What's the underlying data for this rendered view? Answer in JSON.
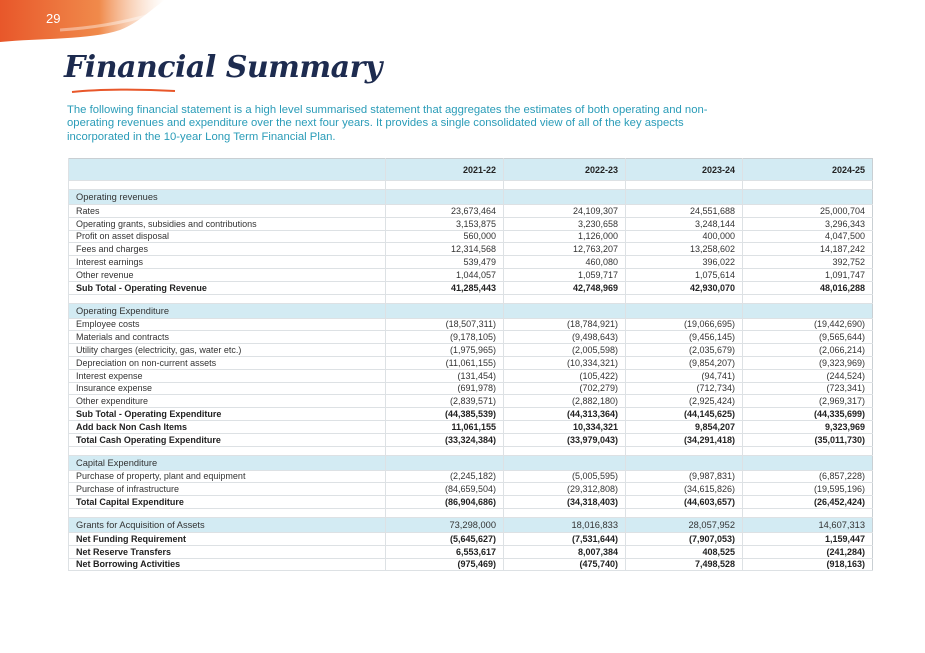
{
  "page_number": "29",
  "title": "Financial Summary",
  "intro": "The following financial statement is a high level summarised statement that aggregates the estimates of both operating and non-operating revenues and expenditure over the next four years. It provides a single consolidated view of all of the key aspects incorporated in the 10-year Long Term Financial Plan.",
  "table": {
    "columns": [
      "2021-22",
      "2022-23",
      "2023-24",
      "2024-25"
    ],
    "sections": [
      {
        "rows": [
          {
            "label": "Operating revenues",
            "shaded": true
          },
          {
            "label": "Rates",
            "values": [
              "23,673,464",
              "24,109,307",
              "24,551,688",
              "25,000,704"
            ]
          },
          {
            "label": "Operating grants, subsidies and contributions",
            "values": [
              "3,153,875",
              "3,230,658",
              "3,248,144",
              "3,296,343"
            ]
          },
          {
            "label": "Profit on asset disposal",
            "values": [
              "560,000",
              "1,126,000",
              "400,000",
              "4,047,500"
            ]
          },
          {
            "label": "Fees and charges",
            "values": [
              "12,314,568",
              "12,763,207",
              "13,258,602",
              "14,187,242"
            ]
          },
          {
            "label": "Interest earnings",
            "values": [
              "539,479",
              "460,080",
              "396,022",
              "392,752"
            ]
          },
          {
            "label": "Other revenue",
            "values": [
              "1,044,057",
              "1,059,717",
              "1,075,614",
              "1,091,747"
            ]
          },
          {
            "label": "Sub Total - Operating Revenue",
            "values": [
              "41,285,443",
              "42,748,969",
              "42,930,070",
              "48,016,288"
            ],
            "bold": true
          }
        ]
      },
      {
        "rows": [
          {
            "label": "Operating Expenditure",
            "shaded": true
          },
          {
            "label": "Employee costs",
            "values": [
              "(18,507,311)",
              "(18,784,921)",
              "(19,066,695)",
              "(19,442,690)"
            ]
          },
          {
            "label": "Materials and contracts",
            "values": [
              "(9,178,105)",
              "(9,498,643)",
              "(9,456,145)",
              "(9,565,644)"
            ]
          },
          {
            "label": "Utility charges (electricity, gas, water etc.)",
            "values": [
              "(1,975,965)",
              "(2,005,598)",
              "(2,035,679)",
              "(2,066,214)"
            ]
          },
          {
            "label": "Depreciation on non-current assets",
            "values": [
              "(11,061,155)",
              "(10,334,321)",
              "(9,854,207)",
              "(9,323,969)"
            ]
          },
          {
            "label": "Interest expense",
            "values": [
              "(131,454)",
              "(105,422)",
              "(94,741)",
              "(244,524)"
            ]
          },
          {
            "label": "Insurance expense",
            "values": [
              "(691,978)",
              "(702,279)",
              "(712,734)",
              "(723,341)"
            ]
          },
          {
            "label": "Other expenditure",
            "values": [
              "(2,839,571)",
              "(2,882,180)",
              "(2,925,424)",
              "(2,969,317)"
            ]
          },
          {
            "label": "Sub Total - Operating Expenditure",
            "values": [
              "(44,385,539)",
              "(44,313,364)",
              "(44,145,625)",
              "(44,335,699)"
            ],
            "bold": true
          },
          {
            "label": "Add back Non Cash Items",
            "values": [
              "11,061,155",
              "10,334,321",
              "9,854,207",
              "9,323,969"
            ],
            "bold": true
          },
          {
            "label": "Total Cash Operating Expenditure",
            "values": [
              "(33,324,384)",
              "(33,979,043)",
              "(34,291,418)",
              "(35,011,730)"
            ],
            "bold": true
          }
        ]
      },
      {
        "rows": [
          {
            "label": "Capital Expenditure",
            "shaded": true
          },
          {
            "label": "Purchase of property, plant and equipment",
            "values": [
              "(2,245,182)",
              "(5,005,595)",
              "(9,987,831)",
              "(6,857,228)"
            ]
          },
          {
            "label": "Purchase of infrastructure",
            "values": [
              "(84,659,504)",
              "(29,312,808)",
              "(34,615,826)",
              "(19,595,196)"
            ]
          },
          {
            "label": "Total Capital Expenditure",
            "values": [
              "(86,904,686)",
              "(34,318,403)",
              "(44,603,657)",
              "(26,452,424)"
            ],
            "bold": true
          }
        ]
      },
      {
        "rows": [
          {
            "label": "Grants for Acquisition of Assets",
            "values": [
              "73,298,000",
              "18,016,833",
              "28,057,952",
              "14,607,313"
            ],
            "shaded": true
          },
          {
            "label": "Net Funding Requirement",
            "values": [
              "(5,645,627)",
              "(7,531,644)",
              "(7,907,053)",
              "1,159,447"
            ],
            "bold": true
          },
          {
            "label": "Net Reserve Transfers",
            "values": [
              "6,553,617",
              "8,007,384",
              "408,525",
              "(241,284)"
            ],
            "bold": true
          },
          {
            "label": "Net Borrowing Activities",
            "values": [
              "(975,469)",
              "(475,740)",
              "7,498,528",
              "(918,163)"
            ],
            "bold": true
          }
        ]
      }
    ]
  }
}
